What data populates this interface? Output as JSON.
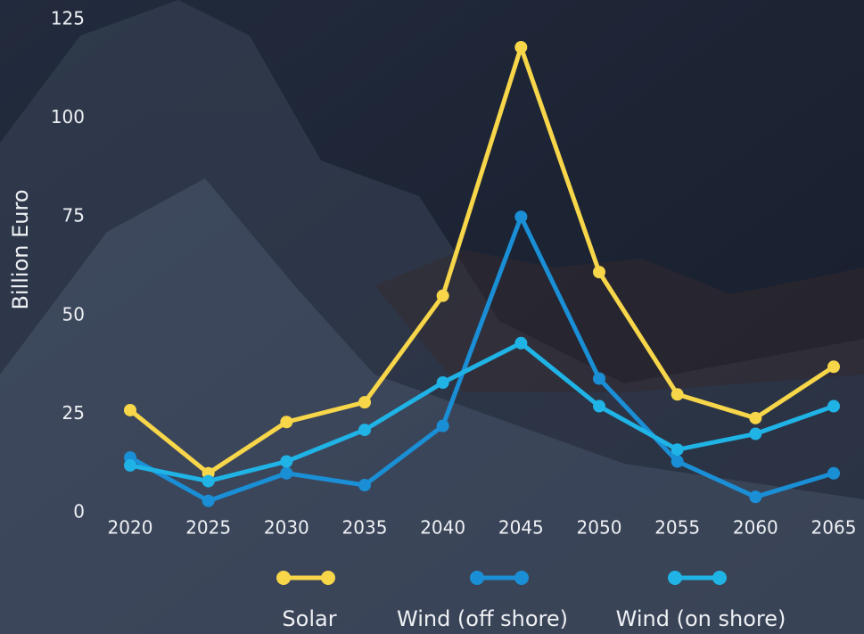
{
  "chart_data": {
    "type": "line",
    "y_label": "Billion Euro",
    "x": [
      2020,
      2025,
      2030,
      2035,
      2040,
      2045,
      2050,
      2055,
      2060,
      2065
    ],
    "xlim": [
      2020,
      2065
    ],
    "xticks": [
      2020,
      2025,
      2030,
      2035,
      2040,
      2045,
      2050,
      2055,
      2060,
      2065
    ],
    "ylim": [
      0,
      125
    ],
    "yticks": [
      0,
      25,
      50,
      75,
      100,
      125
    ],
    "grid": false,
    "legend": "bottom",
    "series": [
      {
        "name": "Solar",
        "color": "#f7d64a",
        "values": [
          26,
          10,
          23,
          28,
          55,
          118,
          61,
          30,
          24,
          37
        ]
      },
      {
        "name": "Wind (off shore)",
        "color": "#1a8fd6",
        "values": [
          14,
          3,
          10,
          7,
          22,
          75,
          34,
          13,
          4,
          10
        ]
      },
      {
        "name": "Wind (on shore)",
        "color": "#1fb3e6",
        "values": [
          12,
          8,
          13,
          21,
          33,
          43,
          27,
          16,
          20,
          27
        ]
      }
    ]
  }
}
